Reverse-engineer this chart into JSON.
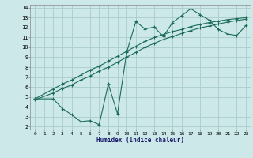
{
  "xlabel": "Humidex (Indice chaleur)",
  "bg_color": "#cce8e8",
  "grid_color": "#aacccc",
  "line_color": "#1a6b5a",
  "xlim": [
    0,
    23
  ],
  "ylim": [
    2,
    14
  ],
  "xticks": [
    0,
    1,
    2,
    3,
    4,
    5,
    6,
    7,
    8,
    9,
    10,
    11,
    12,
    13,
    14,
    15,
    16,
    17,
    18,
    19,
    20,
    21,
    22,
    23
  ],
  "yticks": [
    2,
    3,
    4,
    5,
    6,
    7,
    8,
    9,
    10,
    11,
    12,
    13,
    14
  ],
  "line1_x": [
    0,
    2,
    3,
    4,
    5,
    6,
    7,
    8,
    9,
    10,
    11,
    12,
    13,
    14,
    15,
    16,
    17,
    18,
    19,
    20,
    21,
    22,
    23
  ],
  "line1_y": [
    4.8,
    5.8,
    6.3,
    6.7,
    7.2,
    7.7,
    8.1,
    8.6,
    9.1,
    9.6,
    10.1,
    10.6,
    11.0,
    11.3,
    11.6,
    11.8,
    12.1,
    12.3,
    12.5,
    12.65,
    12.8,
    12.9,
    13.0
  ],
  "line2_x": [
    0,
    2,
    3,
    4,
    5,
    6,
    7,
    8,
    9,
    10,
    11,
    12,
    13,
    14,
    15,
    16,
    17,
    18,
    19,
    20,
    21,
    22,
    23
  ],
  "line2_y": [
    4.7,
    5.4,
    5.85,
    6.2,
    6.7,
    7.1,
    7.6,
    8.0,
    8.5,
    9.0,
    9.5,
    10.0,
    10.4,
    10.8,
    11.1,
    11.4,
    11.7,
    11.95,
    12.15,
    12.35,
    12.55,
    12.7,
    12.85
  ],
  "line3_x": [
    0,
    2,
    3,
    4,
    5,
    6,
    7,
    8,
    9,
    10,
    11,
    12,
    13,
    14,
    15,
    16,
    17,
    18,
    19,
    20,
    21,
    22,
    23
  ],
  "line3_y": [
    4.8,
    4.8,
    3.8,
    3.2,
    2.5,
    2.6,
    2.2,
    6.3,
    3.3,
    9.5,
    12.6,
    11.85,
    12.05,
    11.1,
    12.5,
    13.2,
    13.9,
    13.3,
    12.75,
    11.8,
    11.35,
    11.2,
    12.2
  ]
}
